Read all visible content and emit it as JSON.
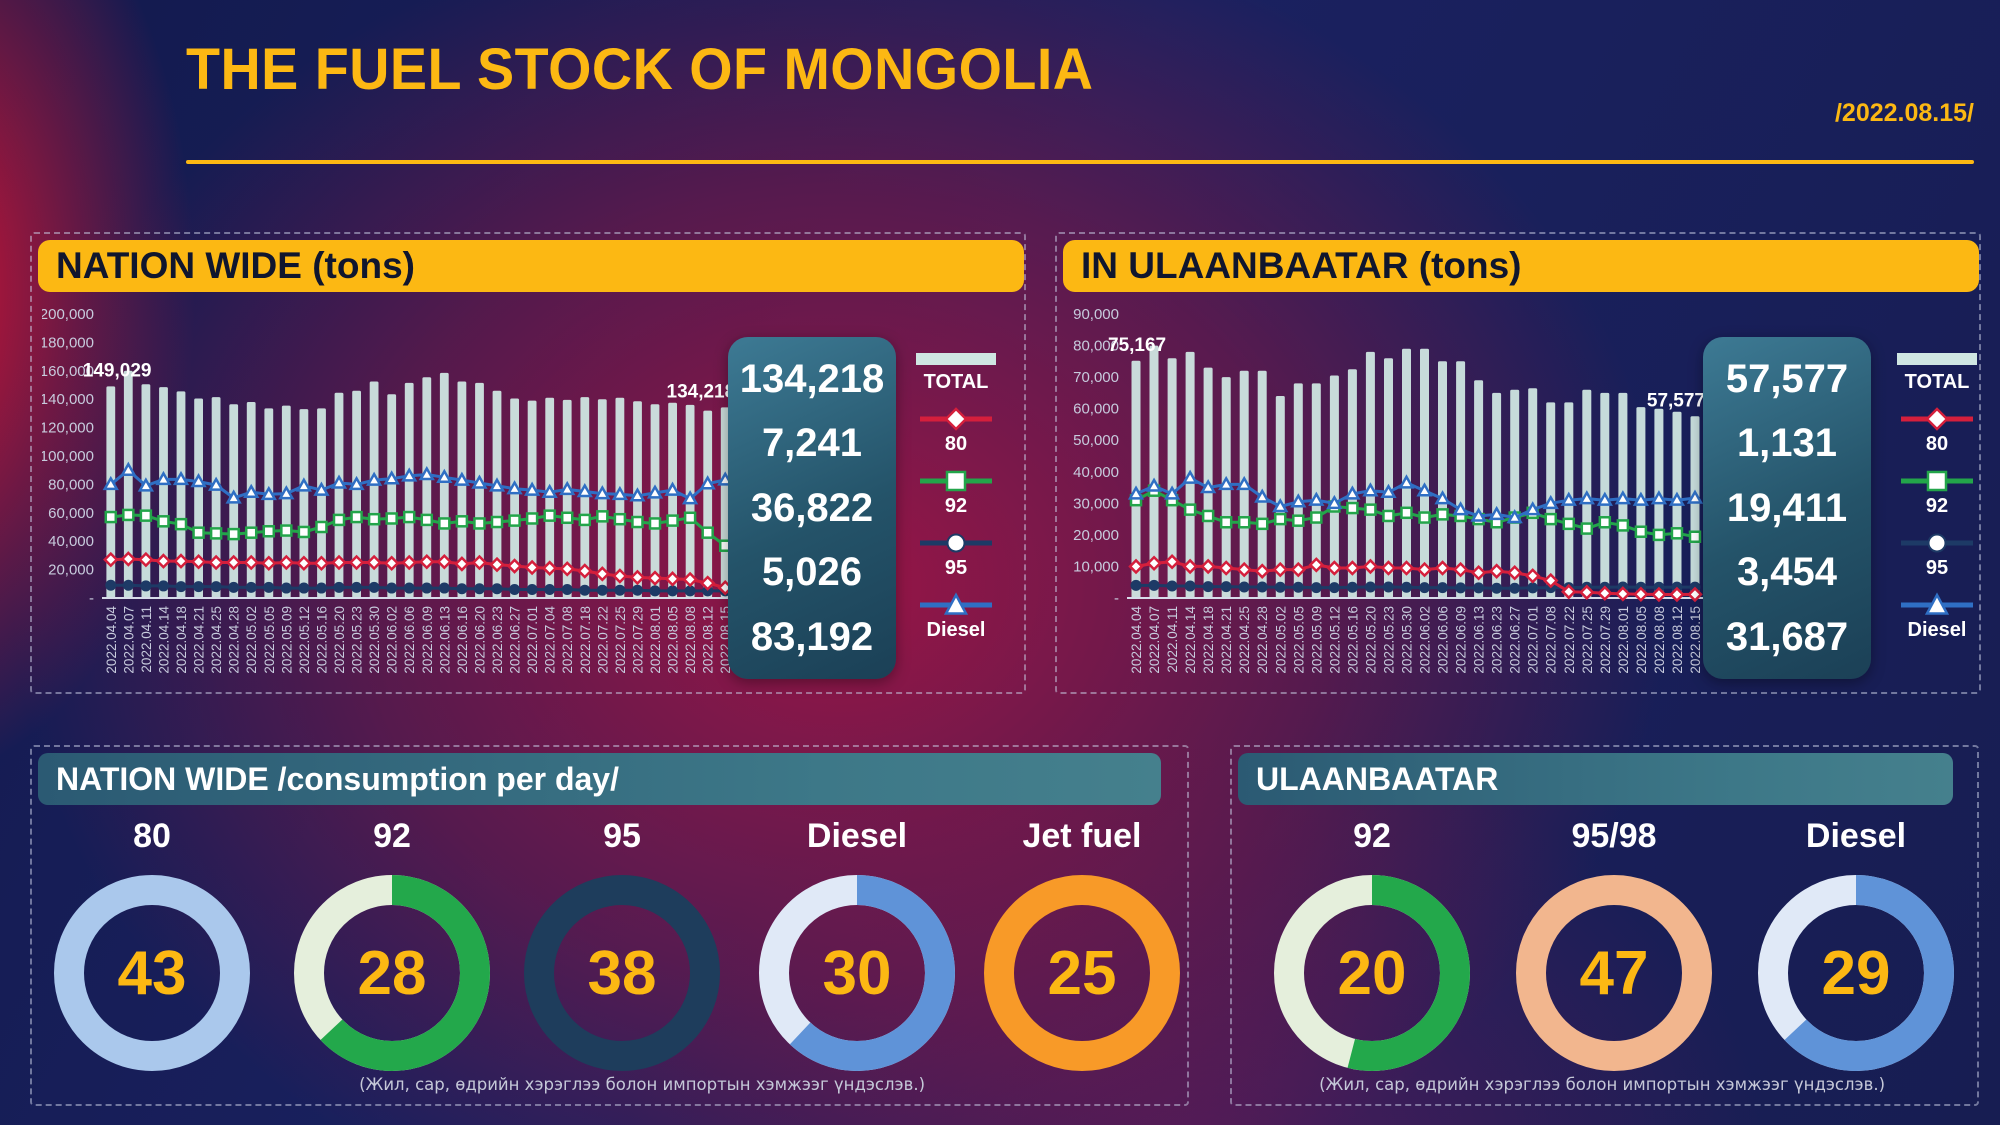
{
  "header": {
    "title": "THE FUEL STOCK OF MONGOLIA",
    "date": "/2022.08.15/"
  },
  "legend": {
    "total_label": "TOTAL",
    "total_color": "#cfe6e2",
    "items": [
      {
        "label": "80",
        "marker": "diamond",
        "color": "#d51f3c",
        "marker_fill": "#ffffff"
      },
      {
        "label": "92",
        "marker": "square",
        "color": "#23a54a",
        "marker_fill": "#ffffff"
      },
      {
        "label": "95",
        "marker": "circle",
        "color": "#1d3a66",
        "marker_fill": "#ffffff"
      },
      {
        "label": "Diesel",
        "marker": "triangle",
        "color": "#2f6fc4",
        "marker_fill": "#ffffff"
      }
    ]
  },
  "panels": {
    "nation": {
      "title": "NATION WIDE (tons)",
      "stats": [
        "134,218",
        "7,241",
        "36,822",
        "5,026",
        "83,192"
      ]
    },
    "ulaanbaatar": {
      "title": "IN ULAANBAATAR (tons)",
      "stats": [
        "57,577",
        "1,131",
        "19,411",
        "3,454",
        "31,687"
      ]
    }
  },
  "chart_data": [
    {
      "type": "bar",
      "title": "NATION WIDE (tons)",
      "ylim": [
        0,
        200000
      ],
      "yticks": [
        "200,000",
        "180,000",
        "160,000",
        "140,000",
        "120,000",
        "100,000",
        "80,000",
        "60,000",
        "40,000",
        "20,000",
        "-"
      ],
      "x": [
        "2022.04.04",
        "2022.04.07",
        "2022.04.11",
        "2022.04.14",
        "2022.04.18",
        "2022.04.21",
        "2022.04.25",
        "2022.04.28",
        "2022.05.02",
        "2022.05.05",
        "2022.05.09",
        "2022.05.12",
        "2022.05.16",
        "2022.05.20",
        "2022.05.23",
        "2022.05.30",
        "2022.06.02",
        "2022.06.06",
        "2022.06.09",
        "2022.06.13",
        "2022.06.16",
        "2022.06.20",
        "2022.06.23",
        "2022.06.27",
        "2022.07.01",
        "2022.07.04",
        "2022.07.08",
        "2022.07.18",
        "2022.07.22",
        "2022.07.25",
        "2022.07.29",
        "2022.08.01",
        "2022.08.05",
        "2022.08.08",
        "2022.08.12",
        "2022.08.15"
      ],
      "bar_series": {
        "name": "TOTAL",
        "color": "#cfe6e2",
        "values": [
          149029,
          160000,
          150500,
          148500,
          145500,
          140500,
          141500,
          136500,
          138000,
          133500,
          135500,
          133000,
          133500,
          144500,
          146000,
          152500,
          143500,
          151500,
          155500,
          158500,
          152500,
          151500,
          146000,
          140500,
          139000,
          141000,
          139500,
          141500,
          140000,
          141000,
          138500,
          136500,
          137500,
          136000,
          132000,
          134218
        ]
      },
      "line_series": [
        {
          "name": "95",
          "color": "#1d3a66",
          "marker": "circle",
          "marker_fill": "#1d3a66",
          "values": [
            9000,
            9000,
            8500,
            8500,
            8000,
            8000,
            8000,
            7500,
            7500,
            7500,
            7000,
            7000,
            7000,
            7500,
            7500,
            7500,
            7000,
            7000,
            7000,
            7000,
            6500,
            6500,
            6500,
            6000,
            6000,
            6000,
            6000,
            5500,
            5500,
            5500,
            5500,
            5000,
            5000,
            5000,
            5000,
            5026
          ]
        },
        {
          "name": "80",
          "color": "#d51f3c",
          "marker": "diamond",
          "marker_fill": "#ffffff",
          "values": [
            27000,
            27500,
            27000,
            26000,
            26000,
            25500,
            25000,
            25000,
            25000,
            24500,
            25000,
            24500,
            24500,
            25000,
            25000,
            25000,
            24500,
            25000,
            25500,
            25500,
            24000,
            25000,
            23500,
            22500,
            21500,
            21000,
            20500,
            19000,
            17000,
            15500,
            14500,
            14000,
            13500,
            13000,
            10500,
            7241
          ]
        },
        {
          "name": "92",
          "color": "#23a54a",
          "marker": "square",
          "marker_fill": "#ffffff",
          "values": [
            57000,
            58500,
            58000,
            54000,
            52000,
            46000,
            45500,
            45000,
            46000,
            47000,
            47500,
            46500,
            50000,
            55000,
            57000,
            55500,
            56000,
            57000,
            55000,
            52500,
            54000,
            52500,
            53500,
            54500,
            56000,
            58000,
            56500,
            55000,
            57500,
            55500,
            53500,
            52500,
            54500,
            56500,
            46000,
            36822
          ]
        },
        {
          "name": "Diesel",
          "color": "#2f6fc4",
          "marker": "triangle",
          "marker_fill": "#ffffff",
          "values": [
            80000,
            90000,
            79000,
            83500,
            83500,
            82000,
            79500,
            70500,
            74500,
            73000,
            73500,
            79000,
            76000,
            81000,
            80000,
            83000,
            84000,
            86000,
            87000,
            85000,
            83000,
            81000,
            79000,
            77000,
            76000,
            74500,
            76500,
            75000,
            73500,
            73000,
            72000,
            74000,
            76000,
            70000,
            80500,
            83192
          ]
        }
      ],
      "annotations": [
        {
          "point": 0,
          "text": "149,029",
          "align": "start"
        },
        {
          "point": 35,
          "text": "134,218",
          "align": "end"
        }
      ]
    },
    {
      "type": "bar",
      "title": "IN ULAANBAATAR (tons)",
      "ylim": [
        0,
        90000
      ],
      "yticks": [
        "90,000",
        "80,000",
        "70,000",
        "60,000",
        "50,000",
        "40,000",
        "30,000",
        "20,000",
        "10,000",
        "-"
      ],
      "x": [
        "2022.04.04",
        "2022.04.07",
        "2022.04.11",
        "2022.04.14",
        "2022.04.18",
        "2022.04.21",
        "2022.04.25",
        "2022.04.28",
        "2022.05.02",
        "2022.05.05",
        "2022.05.09",
        "2022.05.12",
        "2022.05.16",
        "2022.05.20",
        "2022.05.23",
        "2022.05.30",
        "2022.06.02",
        "2022.06.06",
        "2022.06.09",
        "2022.06.13",
        "2022.06.23",
        "2022.06.27",
        "2022.07.01",
        "2022.07.08",
        "2022.07.22",
        "2022.07.25",
        "2022.07.29",
        "2022.08.01",
        "2022.08.05",
        "2022.08.08",
        "2022.08.12",
        "2022.08.15"
      ],
      "bar_series": {
        "name": "TOTAL",
        "color": "#cfe6e2",
        "values": [
          75167,
          80000,
          76000,
          78000,
          73000,
          70000,
          72000,
          72000,
          64000,
          68000,
          68000,
          70500,
          72500,
          78000,
          76000,
          79000,
          79000,
          75000,
          75000,
          69000,
          65000,
          66000,
          66500,
          62000,
          62000,
          66000,
          65000,
          65000,
          60500,
          60000,
          59000,
          57577
        ]
      },
      "line_series": [
        {
          "name": "95",
          "color": "#1d3a66",
          "marker": "circle",
          "marker_fill": "#1d3a66",
          "values": [
            4000,
            4000,
            3800,
            3800,
            3600,
            3600,
            3500,
            3500,
            3400,
            3400,
            3300,
            3300,
            3400,
            3500,
            3500,
            3400,
            3300,
            3300,
            3200,
            3200,
            3100,
            3100,
            3200,
            3300,
            3300,
            3400,
            3400,
            3500,
            3400,
            3400,
            3450,
            3454
          ]
        },
        {
          "name": "80",
          "color": "#d51f3c",
          "marker": "diamond",
          "marker_fill": "#ffffff",
          "values": [
            10000,
            11000,
            11500,
            10000,
            10000,
            9500,
            9000,
            8500,
            9000,
            9000,
            10500,
            9500,
            9500,
            10000,
            9500,
            9500,
            9000,
            9500,
            9000,
            8000,
            8500,
            8000,
            7000,
            5500,
            2000,
            1800,
            1500,
            1300,
            1200,
            1100,
            1100,
            1131
          ]
        },
        {
          "name": "92",
          "color": "#23a54a",
          "marker": "square",
          "marker_fill": "#ffffff",
          "values": [
            31000,
            34000,
            31000,
            28000,
            26000,
            24000,
            24000,
            23500,
            25000,
            24500,
            25500,
            29000,
            28500,
            28000,
            26000,
            27000,
            25500,
            26500,
            26000,
            25000,
            24000,
            25500,
            27000,
            25000,
            23500,
            22000,
            24000,
            23000,
            21000,
            20000,
            20500,
            19411
          ]
        },
        {
          "name": "Diesel",
          "color": "#2f6fc4",
          "marker": "triangle",
          "marker_fill": "#ffffff",
          "values": [
            33000,
            35500,
            33000,
            38000,
            35000,
            36000,
            36000,
            32000,
            29000,
            30500,
            31000,
            30000,
            33000,
            34000,
            33500,
            36500,
            34000,
            31500,
            28000,
            26000,
            26500,
            25500,
            28000,
            30000,
            31000,
            31500,
            31000,
            31500,
            31000,
            31500,
            31000,
            31687
          ]
        }
      ],
      "annotations": [
        {
          "point": 0,
          "text": "75,167",
          "align": "start"
        },
        {
          "point": 31,
          "text": "57,577",
          "align": "end"
        }
      ]
    }
  ],
  "consumption": {
    "nation": {
      "title": "NATION WIDE /consumption per day/",
      "footnote": "(Жил, сар, өдрийн хэрэглээ болон импортын хэмжээг үндэслэв.)",
      "donuts": [
        {
          "label": "80",
          "value": "43",
          "color": "#aac8ec",
          "bg": "#aac8ec",
          "pct": 100
        },
        {
          "label": "92",
          "value": "28",
          "color": "#23a84b",
          "bg": "#e5efdc",
          "pct": 63
        },
        {
          "label": "95",
          "value": "38",
          "color": "#1e3d5c",
          "bg": "#1e3d5c",
          "pct": 100
        },
        {
          "label": "Diesel",
          "value": "30",
          "color": "#5f93d8",
          "bg": "#e0e9f7",
          "pct": 62
        },
        {
          "label": "Jet fuel",
          "value": "25",
          "color": "#f89a28",
          "bg": "#f89a28",
          "pct": 100
        }
      ]
    },
    "ulaanbaatar": {
      "title": "ULAANBAATAR",
      "footnote": "(Жил, сар, өдрийн хэрэглээ болон импортын хэмжээг үндэслэв.)",
      "donuts": [
        {
          "label": "92",
          "value": "20",
          "color": "#23a84b",
          "bg": "#e5efdc",
          "pct": 54
        },
        {
          "label": "95/98",
          "value": "47",
          "color": "#f2b68e",
          "bg": "#f2b68e",
          "pct": 100
        },
        {
          "label": "Diesel",
          "value": "29",
          "color": "#5f93d8",
          "bg": "#e0e9f7",
          "pct": 63
        }
      ]
    }
  }
}
